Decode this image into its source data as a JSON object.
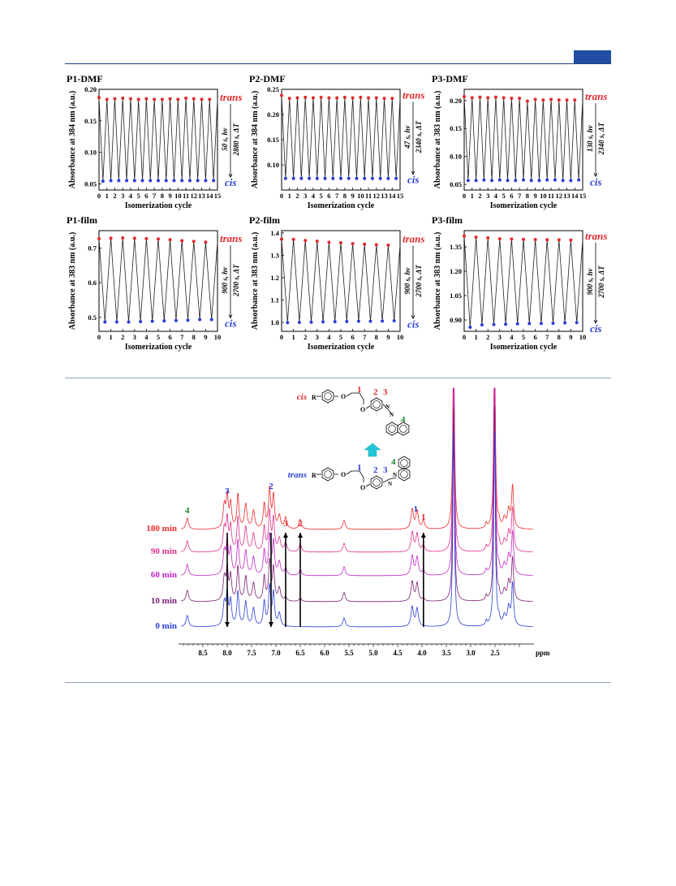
{
  "colors": {
    "trans": "#e2282d",
    "cis": "#2b3fd6",
    "header": "#1f4ea3"
  },
  "chart_data": [
    {
      "type": "line",
      "title": "P1-DMF",
      "xlabel": "Isomerization cycle",
      "ylabel": "Absorbance at 384 nm (a.u.)",
      "xlim": [
        0,
        15
      ],
      "ylim": [
        0.04,
        0.2
      ],
      "xticks": [
        "0",
        "1",
        "2",
        "3",
        "4",
        "5",
        "6",
        "7",
        "8",
        "9",
        "10",
        "11",
        "12",
        "13",
        "14",
        "15"
      ],
      "yticks": [
        "0.05",
        "0.10",
        "0.15",
        "0.20"
      ],
      "yticks_v": [
        0.05,
        0.1,
        0.15,
        0.2
      ],
      "trans": [
        0.187,
        0.184,
        0.185,
        0.186,
        0.185,
        0.184,
        0.185,
        0.184,
        0.184,
        0.185,
        0.184,
        0.186,
        0.185,
        0.184,
        0.184
      ],
      "cis": [
        0.054,
        0.055,
        0.055,
        0.055,
        0.055,
        0.055,
        0.055,
        0.055,
        0.055,
        0.055,
        0.055,
        0.055,
        0.055,
        0.055,
        0.055
      ],
      "ann1": "50 s, hν",
      "ann2": "2880 s, ΔT",
      "trans_label": "trans",
      "cis_label": "cis"
    },
    {
      "type": "line",
      "title": "P2-DMF",
      "xlabel": "Isomerization cycle",
      "ylabel": "Absorbance at 384 nm (a.u.)",
      "xlim": [
        0,
        15
      ],
      "ylim": [
        0.05,
        0.25
      ],
      "xticks": [
        "0",
        "1",
        "2",
        "3",
        "4",
        "5",
        "6",
        "7",
        "8",
        "9",
        "10",
        "11",
        "12",
        "13",
        "14",
        "15"
      ],
      "yticks": [
        "0.10",
        "0.15",
        "0.20",
        "0.25"
      ],
      "yticks_v": [
        0.1,
        0.15,
        0.2,
        0.25
      ],
      "trans": [
        0.238,
        0.232,
        0.233,
        0.234,
        0.233,
        0.234,
        0.233,
        0.233,
        0.234,
        0.233,
        0.234,
        0.233,
        0.233,
        0.232,
        0.232
      ],
      "cis": [
        0.073,
        0.073,
        0.073,
        0.073,
        0.073,
        0.073,
        0.073,
        0.073,
        0.073,
        0.073,
        0.073,
        0.073,
        0.073,
        0.073,
        0.073
      ],
      "ann1": "47 s, hν",
      "ann2": "2340 s, ΔT",
      "trans_label": "trans",
      "cis_label": "cis"
    },
    {
      "type": "line",
      "title": "P3-DMF",
      "xlabel": "Isomerization cycle",
      "ylabel": "Absorbance at 383 nm (a.u.)",
      "xlim": [
        0,
        15
      ],
      "ylim": [
        0.04,
        0.22
      ],
      "xticks": [
        "0",
        "1",
        "2",
        "3",
        "4",
        "5",
        "6",
        "7",
        "8",
        "9",
        "10",
        "11",
        "12",
        "13",
        "14",
        "15"
      ],
      "yticks": [
        "0.05",
        "0.10",
        "0.15",
        "0.20"
      ],
      "yticks_v": [
        0.05,
        0.1,
        0.15,
        0.2
      ],
      "trans": [
        0.207,
        0.205,
        0.206,
        0.205,
        0.206,
        0.205,
        0.204,
        0.204,
        0.199,
        0.202,
        0.201,
        0.202,
        0.201,
        0.201,
        0.201
      ],
      "cis": [
        0.057,
        0.057,
        0.058,
        0.057,
        0.058,
        0.057,
        0.057,
        0.058,
        0.057,
        0.057,
        0.058,
        0.058,
        0.057,
        0.057,
        0.058
      ],
      "ann1": "130 s, hν",
      "ann2": "2340 s, ΔT",
      "trans_label": "trans",
      "cis_label": "cis"
    },
    {
      "type": "line",
      "title": "P1-film",
      "xlabel": "Isomerization cycle",
      "ylabel": "Absorbance at 383 nm (a.u.)",
      "xlim": [
        0,
        10
      ],
      "ylim": [
        0.46,
        0.75
      ],
      "xticks": [
        "0",
        "1",
        "2",
        "3",
        "4",
        "5",
        "6",
        "7",
        "8",
        "9",
        "10"
      ],
      "yticks": [
        "0.5",
        "0.6",
        "0.7"
      ],
      "yticks_v": [
        0.5,
        0.6,
        0.7
      ],
      "trans": [
        0.727,
        0.728,
        0.729,
        0.728,
        0.727,
        0.726,
        0.724,
        0.721,
        0.719,
        0.717
      ],
      "cis": [
        0.487,
        0.487,
        0.487,
        0.488,
        0.489,
        0.49,
        0.491,
        0.492,
        0.494,
        0.494
      ],
      "ann1": "900 s, hν",
      "ann2": "2700 s, ΔT",
      "trans_label": "trans",
      "cis_label": "cis"
    },
    {
      "type": "line",
      "title": "P2-film",
      "xlabel": "Isomerization cycle",
      "ylabel": "Absorbance at 383 nm (a.u.)",
      "xlim": [
        0,
        10
      ],
      "ylim": [
        0.96,
        1.41
      ],
      "xticks": [
        "0",
        "1",
        "2",
        "3",
        "4",
        "5",
        "6",
        "7",
        "8",
        "9",
        "10"
      ],
      "yticks": [
        "1.0",
        "1.1",
        "1.2",
        "1.3",
        "1.4"
      ],
      "yticks_v": [
        1.0,
        1.1,
        1.2,
        1.3,
        1.4
      ],
      "trans": [
        1.372,
        1.371,
        1.366,
        1.363,
        1.358,
        1.356,
        1.352,
        1.349,
        1.347,
        1.345
      ],
      "cis": [
        0.999,
        1.0,
        1.001,
        1.002,
        1.003,
        1.004,
        1.005,
        1.005,
        1.006,
        1.007
      ],
      "ann1": "900 s, hν",
      "ann2": "2700 s, ΔT",
      "trans_label": "trans",
      "cis_label": "cis"
    },
    {
      "type": "line",
      "title": "P3-film",
      "xlabel": "Isomerization cycle",
      "ylabel": "Absorbance at 383 nm (a.u.)",
      "xlim": [
        0,
        10
      ],
      "ylim": [
        0.83,
        1.45
      ],
      "xticks": [
        "0",
        "1",
        "2",
        "3",
        "4",
        "5",
        "6",
        "7",
        "8",
        "9",
        "10"
      ],
      "yticks": [
        "0.90",
        "1.05",
        "1.20",
        "1.35"
      ],
      "yticks_v": [
        0.9,
        1.05,
        1.2,
        1.35
      ],
      "trans": [
        1.416,
        1.41,
        1.405,
        1.4,
        1.398,
        1.396,
        1.395,
        1.394,
        1.393,
        1.392
      ],
      "cis": [
        0.855,
        0.87,
        0.872,
        0.874,
        0.876,
        0.878,
        0.879,
        0.88,
        0.882,
        0.884
      ],
      "ann1": "900 s, hν",
      "ann2": "2700 s, ΔT",
      "trans_label": "trans",
      "cis_label": "cis"
    },
    {
      "type": "line",
      "title": "",
      "xlabel": "ppm",
      "xlim": [
        9.0,
        1.7
      ],
      "xticks": [
        "8.5",
        "8.0",
        "7.5",
        "7.0",
        "6.5",
        "6.0",
        "5.5",
        "5.0",
        "4.5",
        "4.0",
        "3.5",
        "3.0",
        "2.5"
      ],
      "xticks_v": [
        8.5,
        8.0,
        7.5,
        7.0,
        6.5,
        6.0,
        5.5,
        5.0,
        4.5,
        4.0,
        3.5,
        3.0,
        2.5
      ],
      "series": [
        {
          "name": "180 min",
          "color": "#ee2a2a"
        },
        {
          "name": "90 min",
          "color": "#e0318c"
        },
        {
          "name": "60 min",
          "color": "#c127c7"
        },
        {
          "name": "10 min",
          "color": "#7a1f74"
        },
        {
          "name": "0 min",
          "color": "#2b3fd6"
        }
      ],
      "peak_labels_trans": [
        "3",
        "2",
        "1"
      ],
      "peak_labels_cis": [
        "3",
        "2",
        "1"
      ],
      "peak_label_4": "4",
      "structure_cis": {
        "state": "cis",
        "R": "R",
        "o1": "O",
        "o2": "O",
        "n1": "N",
        "n2": "N",
        "l1": "1",
        "l2": "2",
        "l3": "3",
        "l4": "4"
      },
      "structure_trans": {
        "state": "trans",
        "R": "R",
        "o1": "O",
        "o2": "O",
        "n1": "N",
        "n2": "N",
        "l1": "1",
        "l2": "2",
        "l3": "3",
        "l4": "4"
      }
    }
  ]
}
